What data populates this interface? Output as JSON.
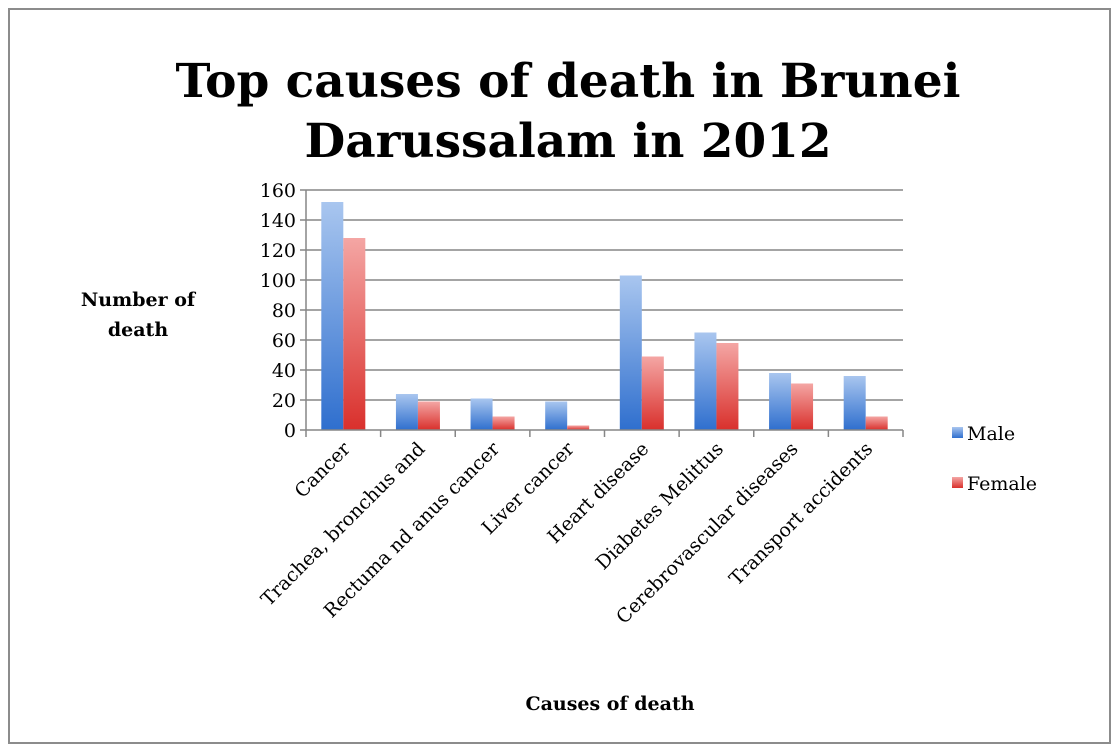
{
  "chart_data": {
    "type": "bar",
    "title": "Top causes of death in Brunei Darussalam in 2012",
    "title_lines": [
      "Top causes of death in Brunei",
      "Darussalam in 2012"
    ],
    "xlabel": "Causes of death",
    "ylabel": "Number of death",
    "ylabel_lines": [
      "Number of",
      "death"
    ],
    "ylim": [
      0,
      160
    ],
    "yticks": [
      0,
      20,
      40,
      60,
      80,
      100,
      120,
      140,
      160
    ],
    "grid": true,
    "legend_position": "right",
    "categories": [
      "Cancer",
      "Trachea, bronchus and",
      "Rectuma nd anus cancer",
      "Liver cancer",
      "Heart disease",
      "Diabetes Melittus",
      "Cerebrovascular diseases",
      "Transport accidents"
    ],
    "series": [
      {
        "name": "Male",
        "color": "#4f81bd",
        "values": [
          152,
          24,
          21,
          19,
          103,
          65,
          38,
          36
        ]
      },
      {
        "name": "Female",
        "color": "#c0504d",
        "values": [
          128,
          19,
          9,
          3,
          49,
          58,
          31,
          9
        ]
      }
    ]
  }
}
